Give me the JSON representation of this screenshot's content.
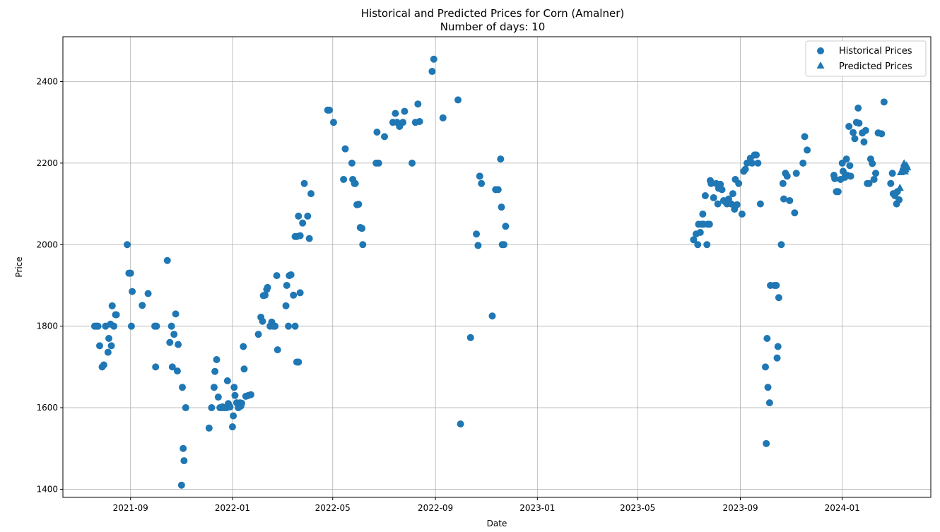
{
  "chart_data": {
    "type": "scatter",
    "title": "Historical and Predicted Prices for Corn (Amalner)",
    "subtitle": "Number of days: 10",
    "xlabel": "Date",
    "ylabel": "Price",
    "x_axis_type": "date",
    "xlim": [
      "2021-06-12",
      "2024-04-16"
    ],
    "ylim": [
      1380,
      2510
    ],
    "x_ticks": [
      "2021-09-01",
      "2022-01-01",
      "2022-05-01",
      "2022-09-01",
      "2023-01-01",
      "2023-05-01",
      "2023-09-01",
      "2024-01-01"
    ],
    "x_tick_labels": [
      "2021-09",
      "2022-01",
      "2022-05",
      "2022-09",
      "2023-01",
      "2023-05",
      "2023-09",
      "2024-01"
    ],
    "y_ticks": [
      1400,
      1600,
      1800,
      2000,
      2200,
      2400
    ],
    "y_tick_labels": [
      "1400",
      "1600",
      "1800",
      "2000",
      "2200",
      "2400"
    ],
    "grid": true,
    "legend_position": "top-right",
    "marker_color": "#1f77b4",
    "series": [
      {
        "name": "Historical Prices",
        "marker": "circle",
        "points": [
          [
            "2021-07-20",
            1800
          ],
          [
            "2021-07-22",
            1800
          ],
          [
            "2021-07-24",
            1800
          ],
          [
            "2021-07-26",
            1752
          ],
          [
            "2021-07-29",
            1700
          ],
          [
            "2021-07-31",
            1705
          ],
          [
            "2021-08-02",
            1800
          ],
          [
            "2021-08-05",
            1736
          ],
          [
            "2021-08-06",
            1770
          ],
          [
            "2021-08-08",
            1805
          ],
          [
            "2021-08-09",
            1752
          ],
          [
            "2021-08-10",
            1850
          ],
          [
            "2021-08-12",
            1800
          ],
          [
            "2021-08-14",
            1828
          ],
          [
            "2021-08-15",
            1828
          ],
          [
            "2021-08-28",
            2000
          ],
          [
            "2021-08-30",
            1930
          ],
          [
            "2021-09-01",
            1930
          ],
          [
            "2021-09-02",
            1800
          ],
          [
            "2021-09-03",
            1885
          ],
          [
            "2021-09-15",
            1851
          ],
          [
            "2021-09-22",
            1880
          ],
          [
            "2021-09-30",
            1800
          ],
          [
            "2021-10-01",
            1700
          ],
          [
            "2021-10-02",
            1800
          ],
          [
            "2021-10-15",
            1961
          ],
          [
            "2021-10-18",
            1760
          ],
          [
            "2021-10-20",
            1800
          ],
          [
            "2021-10-21",
            1700
          ],
          [
            "2021-10-23",
            1780
          ],
          [
            "2021-10-25",
            1830
          ],
          [
            "2021-10-27",
            1690
          ],
          [
            "2021-10-28",
            1755
          ],
          [
            "2021-11-01",
            1410
          ],
          [
            "2021-11-02",
            1650
          ],
          [
            "2021-11-03",
            1500
          ],
          [
            "2021-11-04",
            1470
          ],
          [
            "2021-11-06",
            1600
          ],
          [
            "2021-12-04",
            1550
          ],
          [
            "2021-12-07",
            1600
          ],
          [
            "2021-12-10",
            1650
          ],
          [
            "2021-12-11",
            1689
          ],
          [
            "2021-12-13",
            1718
          ],
          [
            "2021-12-15",
            1626
          ],
          [
            "2021-12-17",
            1600
          ],
          [
            "2021-12-19",
            1600
          ],
          [
            "2021-12-20",
            1602
          ],
          [
            "2021-12-22",
            1600
          ],
          [
            "2021-12-25",
            1600
          ],
          [
            "2021-12-26",
            1666
          ],
          [
            "2021-12-27",
            1610
          ],
          [
            "2021-12-29",
            1602
          ],
          [
            "2022-01-01",
            1553
          ],
          [
            "2022-01-02",
            1580
          ],
          [
            "2022-01-03",
            1650
          ],
          [
            "2022-01-04",
            1630
          ],
          [
            "2022-01-06",
            1612
          ],
          [
            "2022-01-08",
            1600
          ],
          [
            "2022-01-10",
            1612
          ],
          [
            "2022-01-11",
            1604
          ],
          [
            "2022-01-12",
            1611
          ],
          [
            "2022-01-14",
            1750
          ],
          [
            "2022-01-15",
            1695
          ],
          [
            "2022-01-17",
            1628
          ],
          [
            "2022-01-20",
            1630
          ],
          [
            "2022-01-23",
            1632
          ],
          [
            "2022-02-01",
            1780
          ],
          [
            "2022-02-04",
            1822
          ],
          [
            "2022-02-06",
            1812
          ],
          [
            "2022-02-07",
            1875
          ],
          [
            "2022-02-09",
            1876
          ],
          [
            "2022-02-11",
            1890
          ],
          [
            "2022-02-12",
            1895
          ],
          [
            "2022-02-15",
            1800
          ],
          [
            "2022-02-17",
            1810
          ],
          [
            "2022-02-19",
            1800
          ],
          [
            "2022-02-21",
            1800
          ],
          [
            "2022-02-23",
            1924
          ],
          [
            "2022-02-24",
            1742
          ],
          [
            "2022-03-06",
            1850
          ],
          [
            "2022-03-07",
            1900
          ],
          [
            "2022-03-09",
            1800
          ],
          [
            "2022-03-10",
            1924
          ],
          [
            "2022-03-12",
            1926
          ],
          [
            "2022-03-15",
            1876
          ],
          [
            "2022-03-17",
            1800
          ],
          [
            "2022-03-19",
            1712
          ],
          [
            "2022-03-21",
            1712
          ],
          [
            "2022-03-23",
            1882
          ],
          [
            "2022-03-17",
            2020
          ],
          [
            "2022-03-19",
            2020
          ],
          [
            "2022-03-21",
            2070
          ],
          [
            "2022-03-23",
            2022
          ],
          [
            "2022-03-26",
            2053
          ],
          [
            "2022-03-28",
            2150
          ],
          [
            "2022-04-01",
            2070
          ],
          [
            "2022-04-03",
            2015
          ],
          [
            "2022-04-05",
            2125
          ],
          [
            "2022-04-25",
            2330
          ],
          [
            "2022-04-27",
            2330
          ],
          [
            "2022-05-02",
            2300
          ],
          [
            "2022-05-14",
            2160
          ],
          [
            "2022-05-16",
            2235
          ],
          [
            "2022-05-24",
            2200
          ],
          [
            "2022-05-25",
            2160
          ],
          [
            "2022-05-27",
            2150
          ],
          [
            "2022-05-28",
            2150
          ],
          [
            "2022-05-30",
            2098
          ],
          [
            "2022-06-01",
            2099
          ],
          [
            "2022-06-03",
            2042
          ],
          [
            "2022-06-05",
            2040
          ],
          [
            "2022-06-06",
            2000
          ],
          [
            "2022-06-22",
            2200
          ],
          [
            "2022-06-23",
            2276
          ],
          [
            "2022-06-25",
            2200
          ],
          [
            "2022-07-02",
            2265
          ],
          [
            "2022-07-12",
            2300
          ],
          [
            "2022-07-15",
            2322
          ],
          [
            "2022-07-17",
            2300
          ],
          [
            "2022-07-20",
            2290
          ],
          [
            "2022-07-24",
            2300
          ],
          [
            "2022-07-26",
            2327
          ],
          [
            "2022-08-04",
            2200
          ],
          [
            "2022-08-08",
            2300
          ],
          [
            "2022-08-11",
            2345
          ],
          [
            "2022-08-13",
            2302
          ],
          [
            "2022-08-28",
            2425
          ],
          [
            "2022-08-30",
            2455
          ],
          [
            "2022-09-10",
            2311
          ],
          [
            "2022-09-28",
            2355
          ],
          [
            "2022-10-01",
            1560
          ],
          [
            "2022-10-13",
            1772
          ],
          [
            "2022-10-20",
            2026
          ],
          [
            "2022-10-22",
            1998
          ],
          [
            "2022-10-24",
            2168
          ],
          [
            "2022-10-26",
            2150
          ],
          [
            "2022-11-08",
            1825
          ],
          [
            "2022-11-12",
            2135
          ],
          [
            "2022-11-15",
            2135
          ],
          [
            "2022-11-18",
            2210
          ],
          [
            "2022-11-19",
            2092
          ],
          [
            "2022-11-20",
            2000
          ],
          [
            "2022-11-22",
            2000
          ],
          [
            "2022-11-24",
            2045
          ],
          [
            "2023-07-07",
            2012
          ],
          [
            "2023-07-10",
            2026
          ],
          [
            "2023-07-12",
            2000
          ],
          [
            "2023-07-13",
            2050
          ],
          [
            "2023-07-15",
            2030
          ],
          [
            "2023-07-17",
            2050
          ],
          [
            "2023-07-18",
            2075
          ],
          [
            "2023-07-19",
            2050
          ],
          [
            "2023-07-21",
            2120
          ],
          [
            "2023-07-23",
            2000
          ],
          [
            "2023-07-24",
            2050
          ],
          [
            "2023-07-26",
            2050
          ],
          [
            "2023-07-27",
            2157
          ],
          [
            "2023-07-28",
            2150
          ],
          [
            "2023-07-31",
            2115
          ],
          [
            "2023-08-03",
            2150
          ],
          [
            "2023-08-05",
            2100
          ],
          [
            "2023-08-06",
            2138
          ],
          [
            "2023-08-08",
            2148
          ],
          [
            "2023-08-10",
            2135
          ],
          [
            "2023-08-12",
            2108
          ],
          [
            "2023-08-14",
            2105
          ],
          [
            "2023-08-16",
            2100
          ],
          [
            "2023-08-18",
            2112
          ],
          [
            "2023-08-21",
            2100
          ],
          [
            "2023-08-23",
            2125
          ],
          [
            "2023-08-25",
            2087
          ],
          [
            "2023-08-26",
            2160
          ],
          [
            "2023-08-28",
            2098
          ],
          [
            "2023-08-30",
            2150
          ],
          [
            "2023-09-03",
            2075
          ],
          [
            "2023-09-05",
            2180
          ],
          [
            "2023-09-07",
            2185
          ],
          [
            "2023-09-09",
            2200
          ],
          [
            "2023-09-13",
            2212
          ],
          [
            "2023-09-15",
            2200
          ],
          [
            "2023-09-18",
            2220
          ],
          [
            "2023-09-20",
            2220
          ],
          [
            "2023-09-22",
            2200
          ],
          [
            "2023-09-25",
            2100
          ],
          [
            "2023-10-01",
            1700
          ],
          [
            "2023-10-02",
            1512
          ],
          [
            "2023-10-03",
            1770
          ],
          [
            "2023-10-04",
            1650
          ],
          [
            "2023-10-06",
            1612
          ],
          [
            "2023-10-07",
            1900
          ],
          [
            "2023-10-12",
            1900
          ],
          [
            "2023-10-14",
            1900
          ],
          [
            "2023-10-15",
            1722
          ],
          [
            "2023-10-16",
            1750
          ],
          [
            "2023-10-17",
            1870
          ],
          [
            "2023-10-20",
            2000
          ],
          [
            "2023-10-22",
            2150
          ],
          [
            "2023-10-23",
            2112
          ],
          [
            "2023-10-25",
            2175
          ],
          [
            "2023-10-27",
            2168
          ],
          [
            "2023-10-30",
            2108
          ],
          [
            "2023-11-05",
            2078
          ],
          [
            "2023-11-07",
            2175
          ],
          [
            "2023-11-15",
            2200
          ],
          [
            "2023-11-17",
            2265
          ],
          [
            "2023-11-20",
            2232
          ],
          [
            "2023-12-22",
            2170
          ],
          [
            "2023-12-23",
            2162
          ],
          [
            "2023-12-25",
            2130
          ],
          [
            "2023-12-27",
            2130
          ],
          [
            "2023-12-30",
            2160
          ],
          [
            "2024-01-01",
            2200
          ],
          [
            "2024-01-02",
            2180
          ],
          [
            "2024-01-04",
            2165
          ],
          [
            "2024-01-06",
            2210
          ],
          [
            "2024-01-07",
            2170
          ],
          [
            "2024-01-09",
            2290
          ],
          [
            "2024-01-10",
            2194
          ],
          [
            "2024-01-11",
            2168
          ],
          [
            "2024-01-14",
            2275
          ],
          [
            "2024-01-16",
            2260
          ],
          [
            "2024-01-18",
            2300
          ],
          [
            "2024-01-20",
            2335
          ],
          [
            "2024-01-21",
            2298
          ],
          [
            "2024-01-25",
            2274
          ],
          [
            "2024-01-27",
            2252
          ],
          [
            "2024-01-29",
            2280
          ],
          [
            "2024-01-31",
            2150
          ],
          [
            "2024-02-02",
            2150
          ],
          [
            "2024-02-04",
            2210
          ],
          [
            "2024-02-06",
            2199
          ],
          [
            "2024-02-08",
            2160
          ],
          [
            "2024-02-10",
            2175
          ],
          [
            "2024-02-13",
            2274
          ],
          [
            "2024-02-17",
            2272
          ],
          [
            "2024-02-20",
            2350
          ],
          [
            "2024-02-28",
            2150
          ],
          [
            "2024-03-01",
            2175
          ],
          [
            "2024-03-02",
            2125
          ],
          [
            "2024-03-04",
            2120
          ],
          [
            "2024-03-06",
            2100
          ],
          [
            "2024-03-07",
            2130
          ],
          [
            "2024-03-09",
            2110
          ]
        ]
      },
      {
        "name": "Predicted Prices",
        "marker": "triangle",
        "points": [
          [
            "2024-03-10",
            2140
          ],
          [
            "2024-03-11",
            2178
          ],
          [
            "2024-03-12",
            2180
          ],
          [
            "2024-03-13",
            2185
          ],
          [
            "2024-03-14",
            2192
          ],
          [
            "2024-03-15",
            2200
          ],
          [
            "2024-03-16",
            2180
          ],
          [
            "2024-03-17",
            2185
          ],
          [
            "2024-03-18",
            2195
          ],
          [
            "2024-03-19",
            2190
          ]
        ]
      }
    ]
  }
}
